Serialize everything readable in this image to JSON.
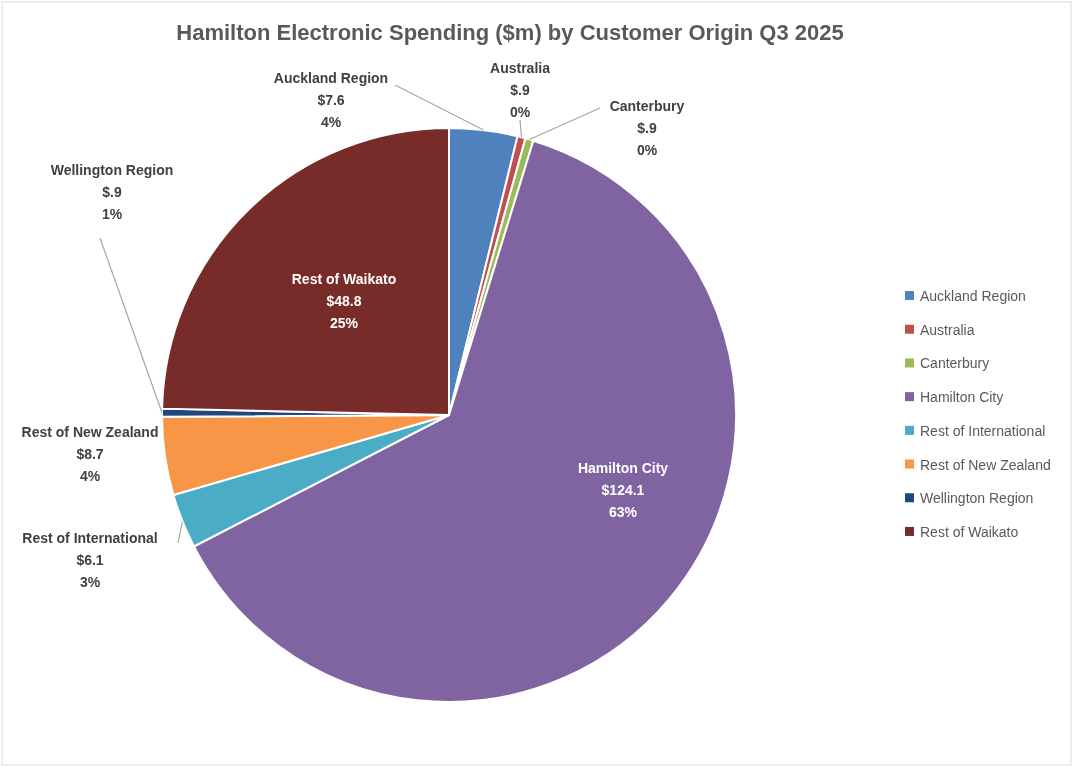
{
  "chart_data": {
    "type": "pie",
    "title": "Hamilton Electronic Spending ($m) by Customer Origin Q3 2025",
    "categories": [
      "Auckland Region",
      "Australia",
      "Canterbury",
      "Hamilton City",
      "Rest of International",
      "Rest of New Zealand",
      "Wellington Region",
      "Rest of Waikato"
    ],
    "values": [
      7.6,
      0.9,
      0.9,
      124.1,
      6.1,
      8.7,
      0.9,
      48.8
    ],
    "colors": [
      "#4f81bd",
      "#c0504d",
      "#9bbb59",
      "#8064a2",
      "#4bacc6",
      "#f79646",
      "#1f497d",
      "#772c2a"
    ],
    "value_labels": [
      "$7.6\n4%",
      "$.9\n0%",
      "$.9\n0%",
      "$124.1\n63%",
      "$6.1\n3%",
      "$8.7\n4%",
      "$.9\n1%",
      "$48.8\n25%"
    ],
    "legend": "right"
  }
}
